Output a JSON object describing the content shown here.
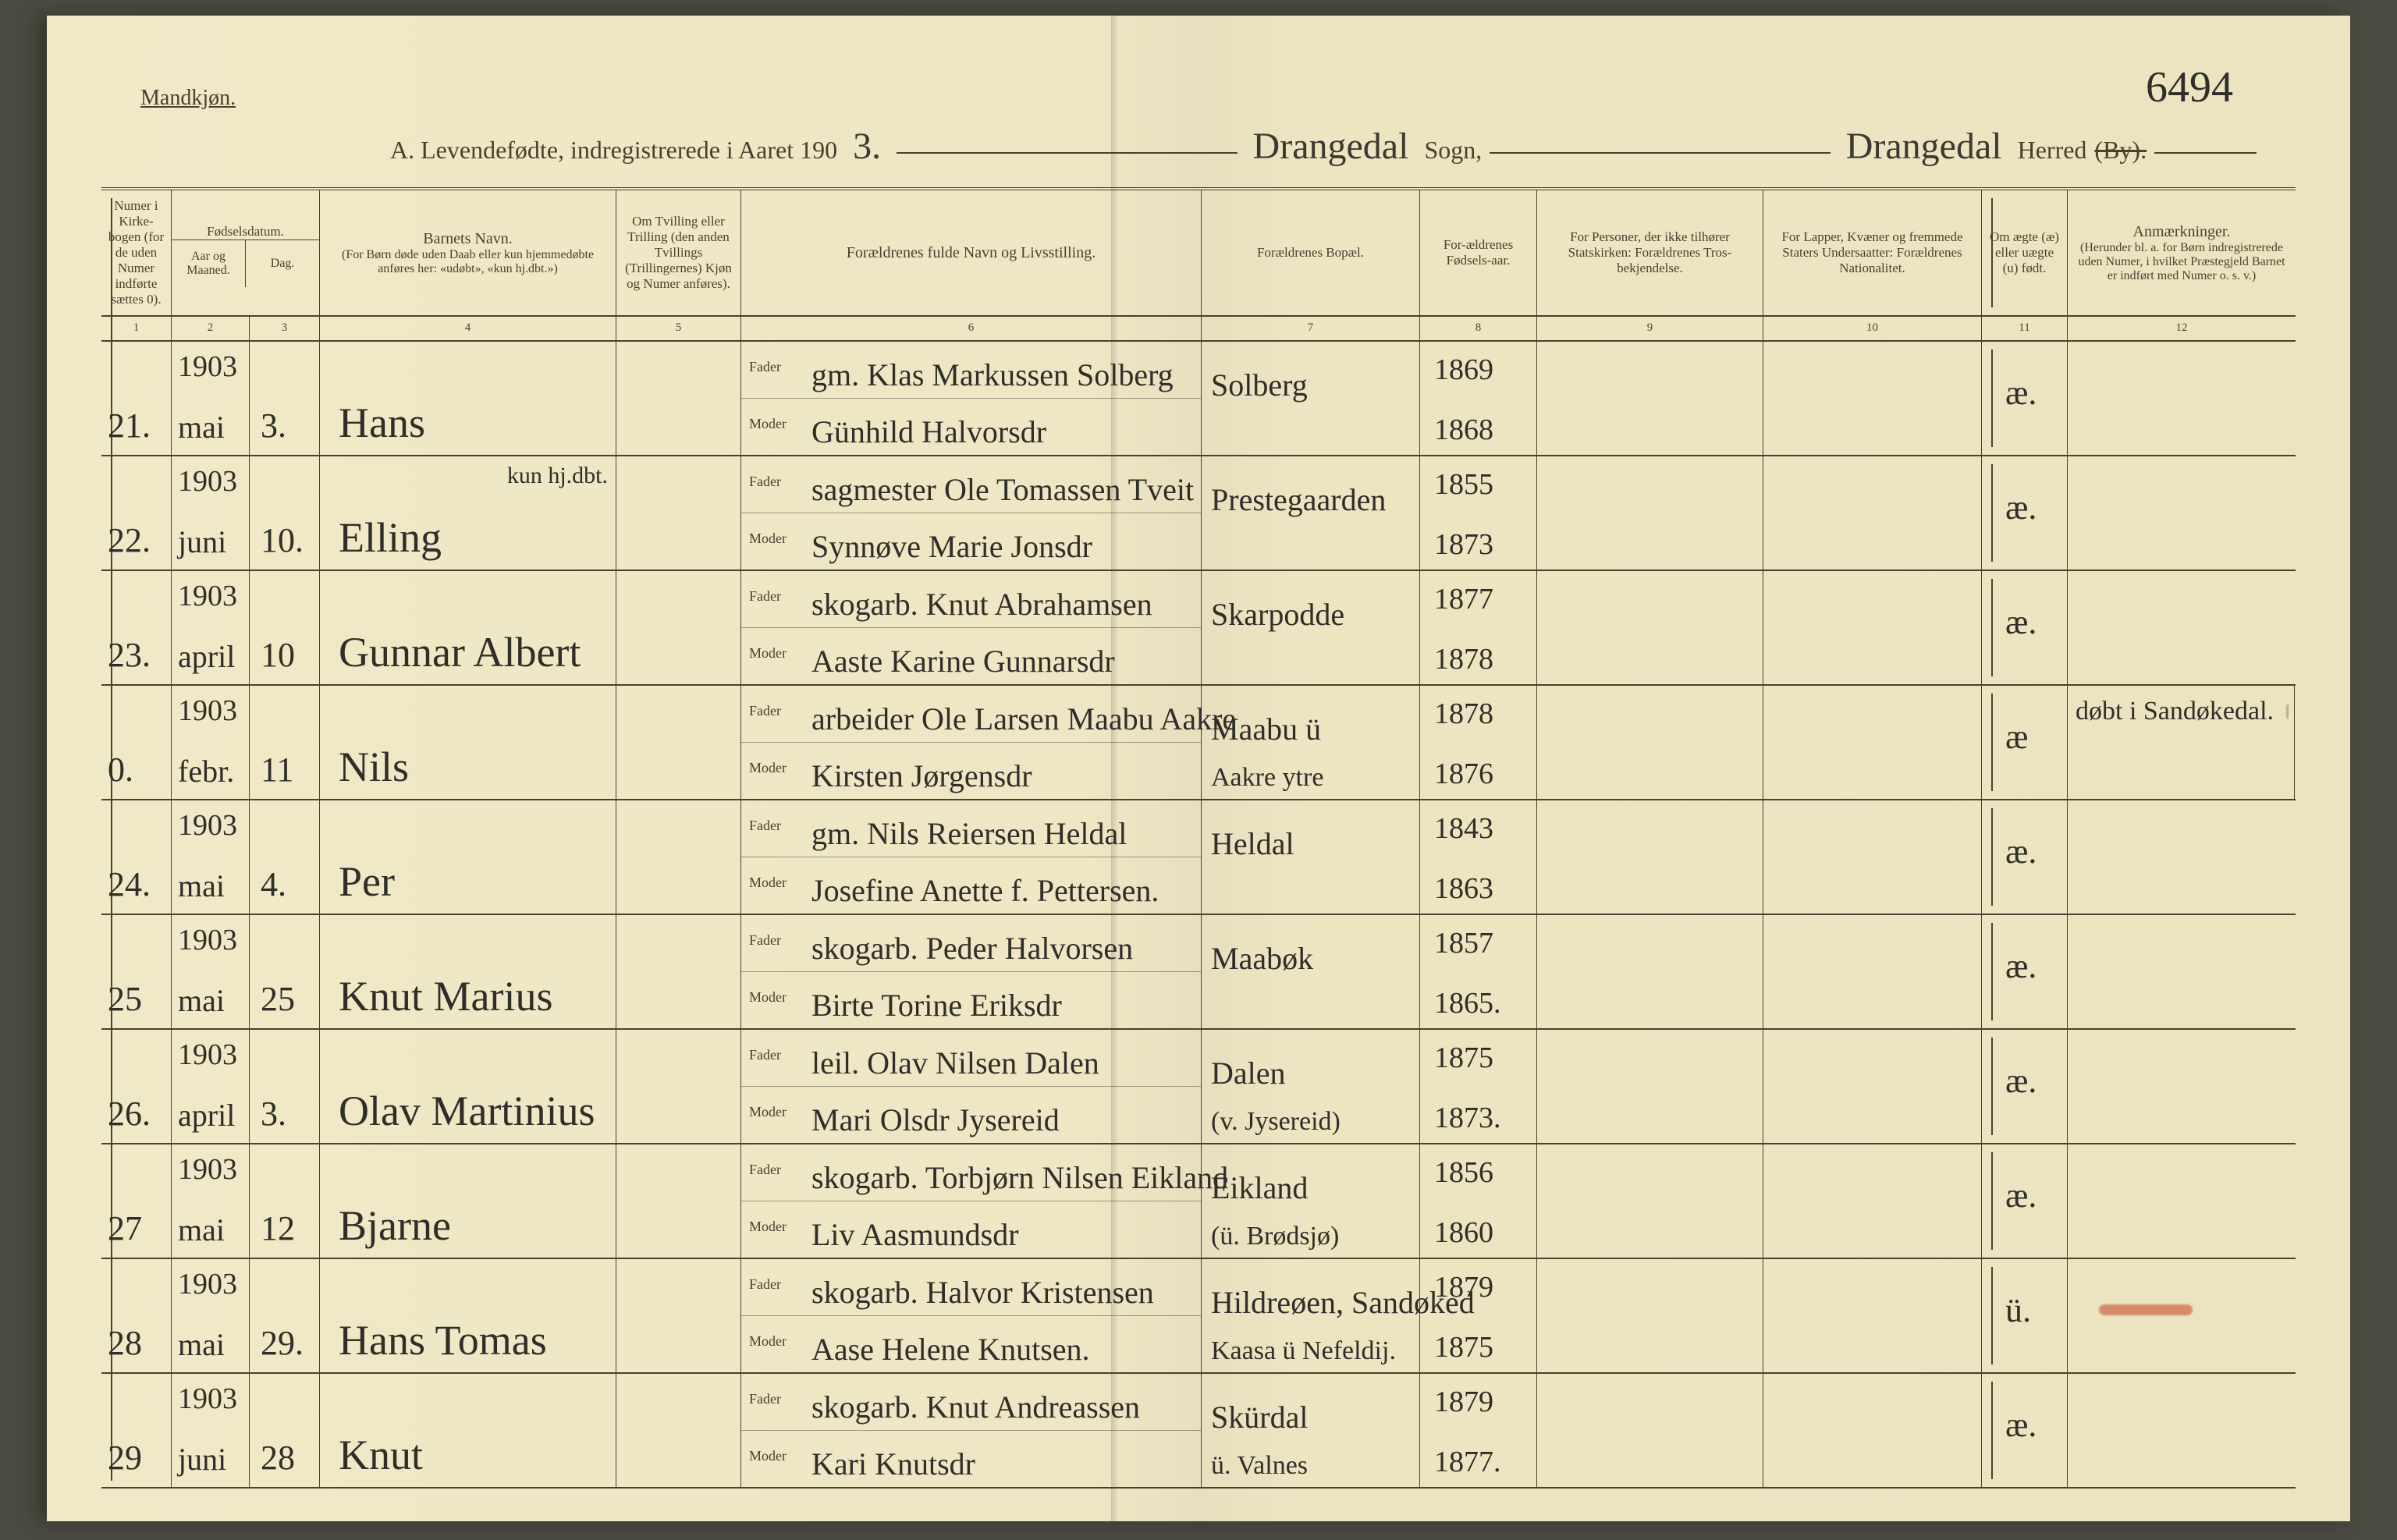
{
  "page_number": "6494",
  "header_left": "Mandkjøn.",
  "title": {
    "prefix": "A.  Levendefødte, indregistrerede i Aaret 190",
    "year_suffix": "3.",
    "sogn_value": "Drangedal",
    "sogn_label": "Sogn,",
    "herred_value": "Drangedal",
    "herred_label": "Herred",
    "struck": "(By)."
  },
  "columns": {
    "c1": {
      "num": "1",
      "label": "Numer i Kirke-bogen (for de uden Numer indførte sættes 0)."
    },
    "c2a": {
      "label": "Aar og Maaned."
    },
    "c2b": {
      "label": "Dag."
    },
    "c2": {
      "num": "2 · 3",
      "label": "Fødselsdatum."
    },
    "c4": {
      "num": "4",
      "label": "Barnets Navn.",
      "sublabel": "(For Børn døde uden Daab eller kun hjemmedøbte anføres her: «udøbt», «kun hj.dbt.»)"
    },
    "c5": {
      "num": "5",
      "label": "Om Tvilling eller Trilling (den anden Tvillings (Trillingernes) Kjøn og Numer anføres)."
    },
    "c6": {
      "num": "6",
      "label": "Forældrenes fulde Navn og Livsstilling.",
      "fader": "Fader",
      "moder": "Moder"
    },
    "c7": {
      "num": "7",
      "label": "Forældrenes Bopæl."
    },
    "c8": {
      "num": "8",
      "label": "For-ældrenes Fødsels-aar."
    },
    "c9": {
      "num": "9",
      "label": "For Personer, der ikke tilhører Statskirken: Forældrenes Tros-bekjendelse."
    },
    "c10": {
      "num": "10",
      "label": "For Lapper, Kvæner og fremmede Staters Undersaatter: Forældrenes Nationalitet."
    },
    "c11": {
      "num": "11",
      "label": "Om ægte (æ) eller uægte (u) født."
    },
    "c12": {
      "num": "12",
      "label": "Anmærkninger.",
      "sublabel": "(Herunder bl. a. for Børn indregistrerede uden Numer, i hvilket Præstegjeld Barnet er indført med Numer o. s. v.)"
    }
  },
  "rows": [
    {
      "n": "21.",
      "year": "1903",
      "mon": "mai",
      "day": "3.",
      "name": "Hans",
      "fader": "gm. Klas Markussen Solberg",
      "moder": "Günhild Halvorsdr",
      "res": "Solberg",
      "res2": "",
      "fy": "1869",
      "my": "1868",
      "leg": "æ.",
      "rem": ""
    },
    {
      "n": "22.",
      "year": "1903",
      "mon": "juni",
      "day": "10.",
      "name": "Elling",
      "note5": "kun hj.dbt.",
      "fader": "sagmester Ole Tomassen Tveit",
      "moder": "Synnøve Marie Jonsdr",
      "res": "Prestegaarden",
      "res2": "",
      "fy": "1855",
      "my": "1873",
      "leg": "æ.",
      "rem": ""
    },
    {
      "n": "23.",
      "year": "1903",
      "mon": "april",
      "day": "10",
      "name": "Gunnar Albert",
      "fader": "skogarb. Knut Abrahamsen",
      "moder": "Aaste Karine Gunnarsdr",
      "res": "Skarpodde",
      "res2": "",
      "fy": "1877",
      "my": "1878",
      "leg": "æ.",
      "rem": ""
    },
    {
      "n": "0.",
      "year": "1903",
      "mon": "febr.",
      "day": "11",
      "name": "Nils",
      "fader": "arbeider Ole Larsen Maabu Aakre",
      "moder": "Kirsten Jørgensdr",
      "res": "Maabu ü",
      "res2": "Aakre ytre",
      "fy": "1878",
      "my": "1876",
      "leg": "æ",
      "rem": "døbt i Sandøkedal.",
      "struck": true
    },
    {
      "n": "24.",
      "year": "1903",
      "mon": "mai",
      "day": "4.",
      "name": "Per",
      "fader": "gm. Nils Reiersen Heldal",
      "moder": "Josefine Anette f. Pettersen.",
      "res": "Heldal",
      "res2": "",
      "fy": "1843",
      "my": "1863",
      "leg": "æ.",
      "rem": ""
    },
    {
      "n": "25",
      "year": "1903",
      "mon": "mai",
      "day": "25",
      "name": "Knut Marius",
      "fader": "skogarb. Peder Halvorsen",
      "moder": "Birte Torine Eriksdr",
      "res": "Maabøk",
      "res2": "",
      "fy": "1857",
      "my": "1865.",
      "leg": "æ.",
      "rem": ""
    },
    {
      "n": "26.",
      "year": "1903",
      "mon": "april",
      "day": "3.",
      "name": "Olav Martinius",
      "fader": "leil. Olav Nilsen Dalen",
      "moder": "Mari Olsdr Jysereid",
      "res": "Dalen",
      "res2": "(v. Jysereid)",
      "fy": "1875",
      "my": "1873.",
      "leg": "æ.",
      "rem": ""
    },
    {
      "n": "27",
      "year": "1903",
      "mon": "mai",
      "day": "12",
      "name": "Bjarne",
      "fader": "skogarb. Torbjørn Nilsen Eikland",
      "moder": "Liv Aasmundsdr",
      "res": "Eikland",
      "res2": "(ü. Brødsjø)",
      "fy": "1856",
      "my": "1860",
      "leg": "æ.",
      "rem": ""
    },
    {
      "n": "28",
      "year": "1903",
      "mon": "mai",
      "day": "29.",
      "name": "Hans Tomas",
      "fader": "skogarb. Halvor Kristensen",
      "moder": "Aase Helene Knutsen.",
      "res": "Hildreøen, Sandøked",
      "res2": "Kaasa ü Nefeldij.",
      "fy": "1879",
      "my": "1875",
      "leg": "ü.",
      "rem": "",
      "redmark": true
    },
    {
      "n": "29",
      "year": "1903",
      "mon": "juni",
      "day": "28",
      "name": "Knut",
      "fader": "skogarb. Knut Andreassen",
      "moder": "Kari Knutsdr",
      "res": "Skürdal",
      "res2": "ü. Valnes",
      "fy": "1879",
      "my": "1877.",
      "leg": "æ.",
      "rem": ""
    }
  ],
  "colors": {
    "ink": "#2f2e28",
    "print": "#4a4030",
    "paper": "#ede5c2",
    "red": "#c85032"
  }
}
